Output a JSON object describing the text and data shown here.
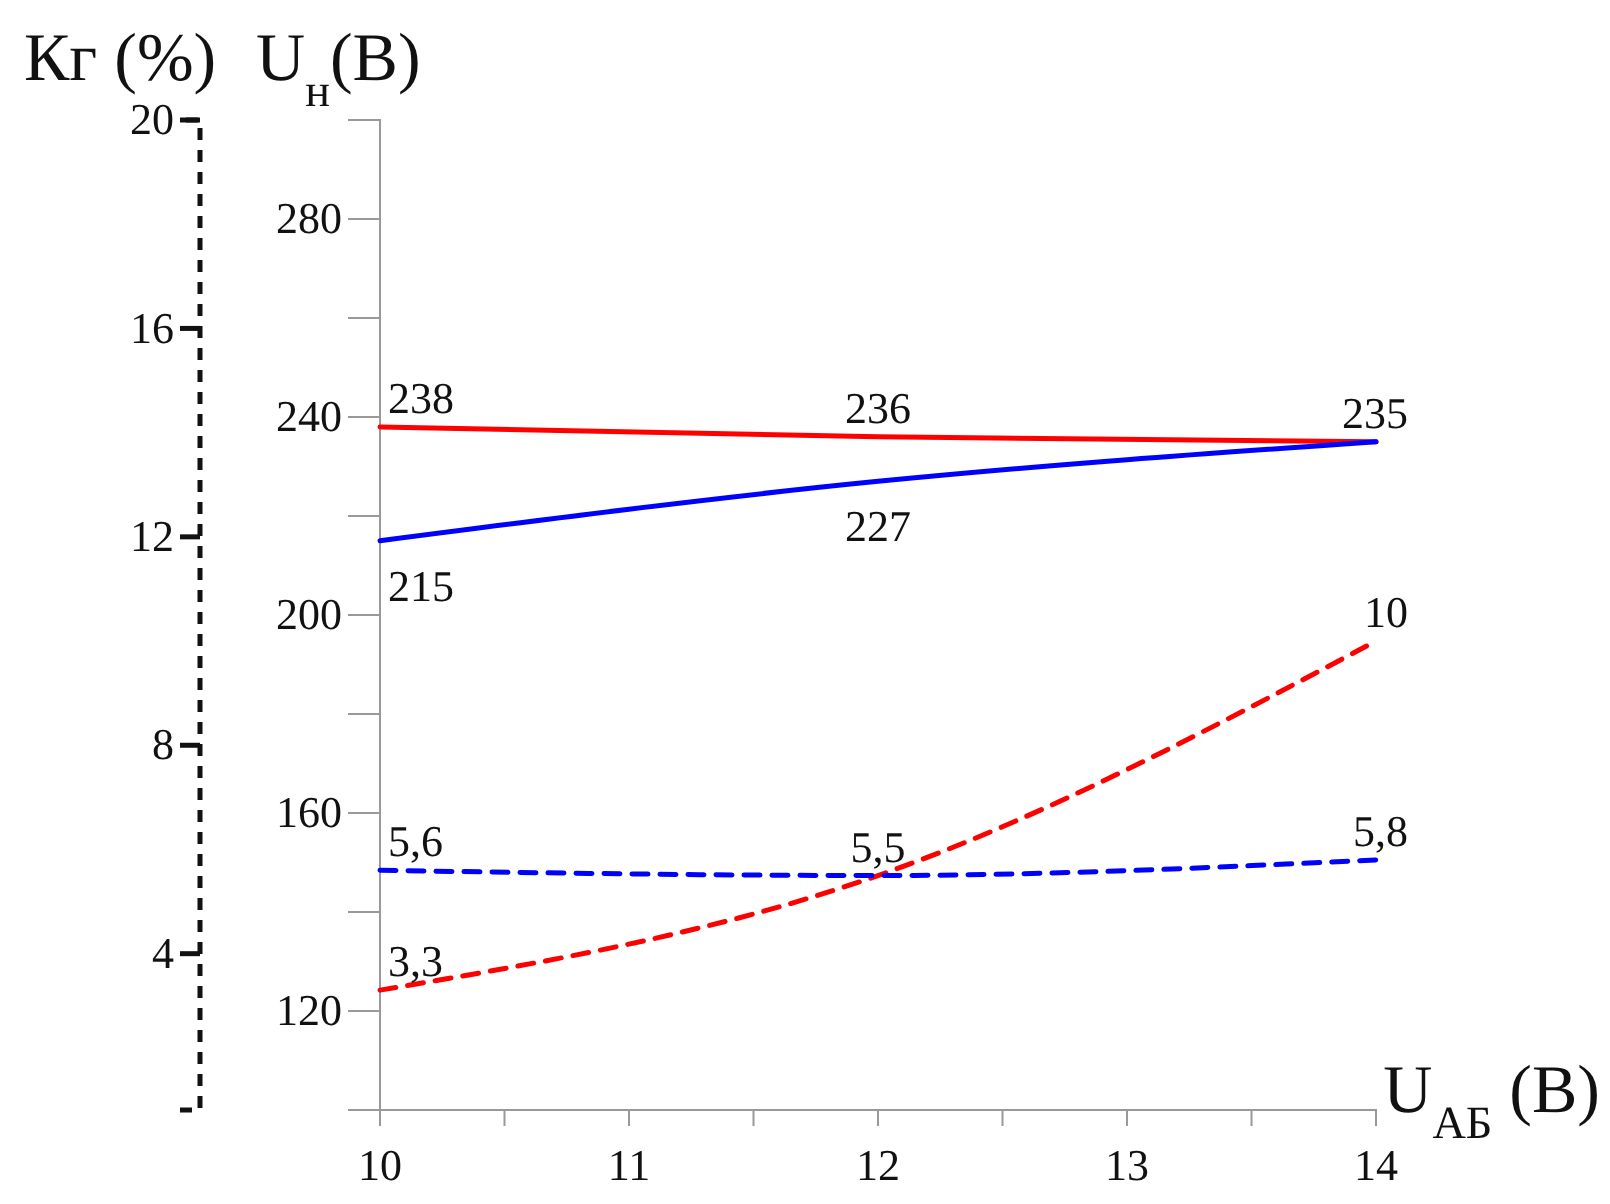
{
  "chart_data": {
    "type": "line",
    "xlabel": "U$_{АБ}$ (В)",
    "ylabel": "U$_{н}$(В)",
    "y2label": "Кг (%)",
    "x": [
      10,
      12,
      14
    ],
    "xlim": [
      10,
      14
    ],
    "xticks": [
      10,
      {
        "value": 10.5,
        "label": null
      },
      11,
      {
        "value": 11.5,
        "label": null
      },
      12,
      {
        "value": 12.5,
        "label": null
      },
      13,
      {
        "value": 13.5,
        "label": null
      },
      14
    ],
    "ylim": [
      100,
      300
    ],
    "yticks": [
      {
        "value": 100,
        "label": null
      },
      120,
      {
        "value": 140,
        "label": null
      },
      160,
      {
        "value": 180,
        "label": null
      },
      200,
      {
        "value": 220,
        "label": null
      },
      240,
      {
        "value": 260,
        "label": null
      },
      280,
      {
        "value": 300,
        "label": null
      }
    ],
    "y2lim": [
      1,
      20
    ],
    "y2ticks": [
      4,
      8,
      12,
      16,
      20
    ],
    "grid": false,
    "marker": "none",
    "series": [
      {
        "color": "#ff0000",
        "values": [
          238,
          236,
          235
        ],
        "value_labels": [
          "238",
          "236",
          "235"
        ],
        "line_style": "solid"
      },
      {
        "color": "#0000ff",
        "values": [
          215,
          227,
          235
        ],
        "value_labels": [
          "215",
          "227",
          null
        ],
        "line_style": "solid"
      },
      {
        "color": "#ff0000",
        "values": [
          3.3,
          5.5,
          10
        ],
        "value_labels": [
          "3,3",
          null,
          "10"
        ],
        "line_style": "dashed",
        "axis": "y2"
      },
      {
        "color": "#0000ff",
        "values": [
          5.6,
          5.5,
          5.8
        ],
        "value_labels": [
          "5,6",
          "5,5",
          "5,8"
        ],
        "line_style": "dashed",
        "axis": "y2"
      }
    ]
  }
}
